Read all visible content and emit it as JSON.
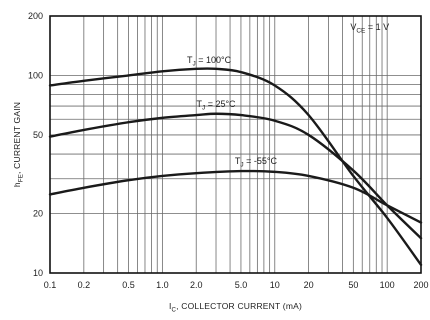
{
  "chart_data": {
    "type": "line",
    "x_scale": "log",
    "y_scale": "log",
    "xlim": [
      0.1,
      200
    ],
    "ylim": [
      10,
      200
    ],
    "grid": true,
    "x_ticks": [
      {
        "value": 0.1,
        "label": "0.1"
      },
      {
        "value": 0.2,
        "label": "0.2"
      },
      {
        "value": 0.5,
        "label": "0.5"
      },
      {
        "value": 1.0,
        "label": "1.0"
      },
      {
        "value": 2.0,
        "label": "2.0"
      },
      {
        "value": 5.0,
        "label": "5.0"
      },
      {
        "value": 10,
        "label": "10"
      },
      {
        "value": 20,
        "label": "20"
      },
      {
        "value": 50,
        "label": "50"
      },
      {
        "value": 100,
        "label": "100"
      },
      {
        "value": 200,
        "label": "200"
      }
    ],
    "y_ticks": [
      {
        "value": 200,
        "label": "200"
      },
      {
        "value": 100,
        "label": "100"
      },
      {
        "value": 50,
        "label": "50"
      },
      {
        "value": 20,
        "label": "20"
      },
      {
        "value": 10,
        "label": "10"
      }
    ],
    "xlabel": {
      "symbol": "I",
      "sub": "C",
      "text": ", COLLECTOR CURRENT (mA)"
    },
    "ylabel": {
      "symbol": "h",
      "sub": "FE",
      "text": ", CURRENT GAIN"
    },
    "annotation": {
      "symbol": "V",
      "sub": "CE",
      "text": " = 1 V"
    },
    "series": [
      {
        "label": {
          "symbol": "T",
          "sub": "J",
          "text": " = 100°C"
        },
        "x": [
          0.1,
          0.2,
          0.5,
          1.0,
          2.0,
          3.0,
          5.0,
          10,
          20,
          50,
          100,
          200
        ],
        "y": [
          89,
          94,
          100,
          105,
          108,
          108,
          104,
          89,
          63,
          31,
          19,
          11
        ]
      },
      {
        "label": {
          "symbol": "T",
          "sub": "J",
          "text": " = 25°C"
        },
        "x": [
          0.1,
          0.2,
          0.5,
          1.0,
          2.0,
          3.0,
          5.0,
          10,
          20,
          50,
          100,
          200
        ],
        "y": [
          49,
          53,
          58,
          61,
          63,
          64,
          63,
          59,
          50,
          33,
          22,
          15
        ]
      },
      {
        "label": {
          "symbol": "T",
          "sub": "J",
          "text": " = -55°C"
        },
        "x": [
          0.1,
          0.2,
          0.5,
          1.0,
          2.0,
          5.0,
          10,
          20,
          50,
          100,
          200
        ],
        "y": [
          25,
          27,
          29.5,
          31,
          32,
          32.8,
          32.5,
          31,
          27,
          22,
          18
        ]
      }
    ]
  }
}
